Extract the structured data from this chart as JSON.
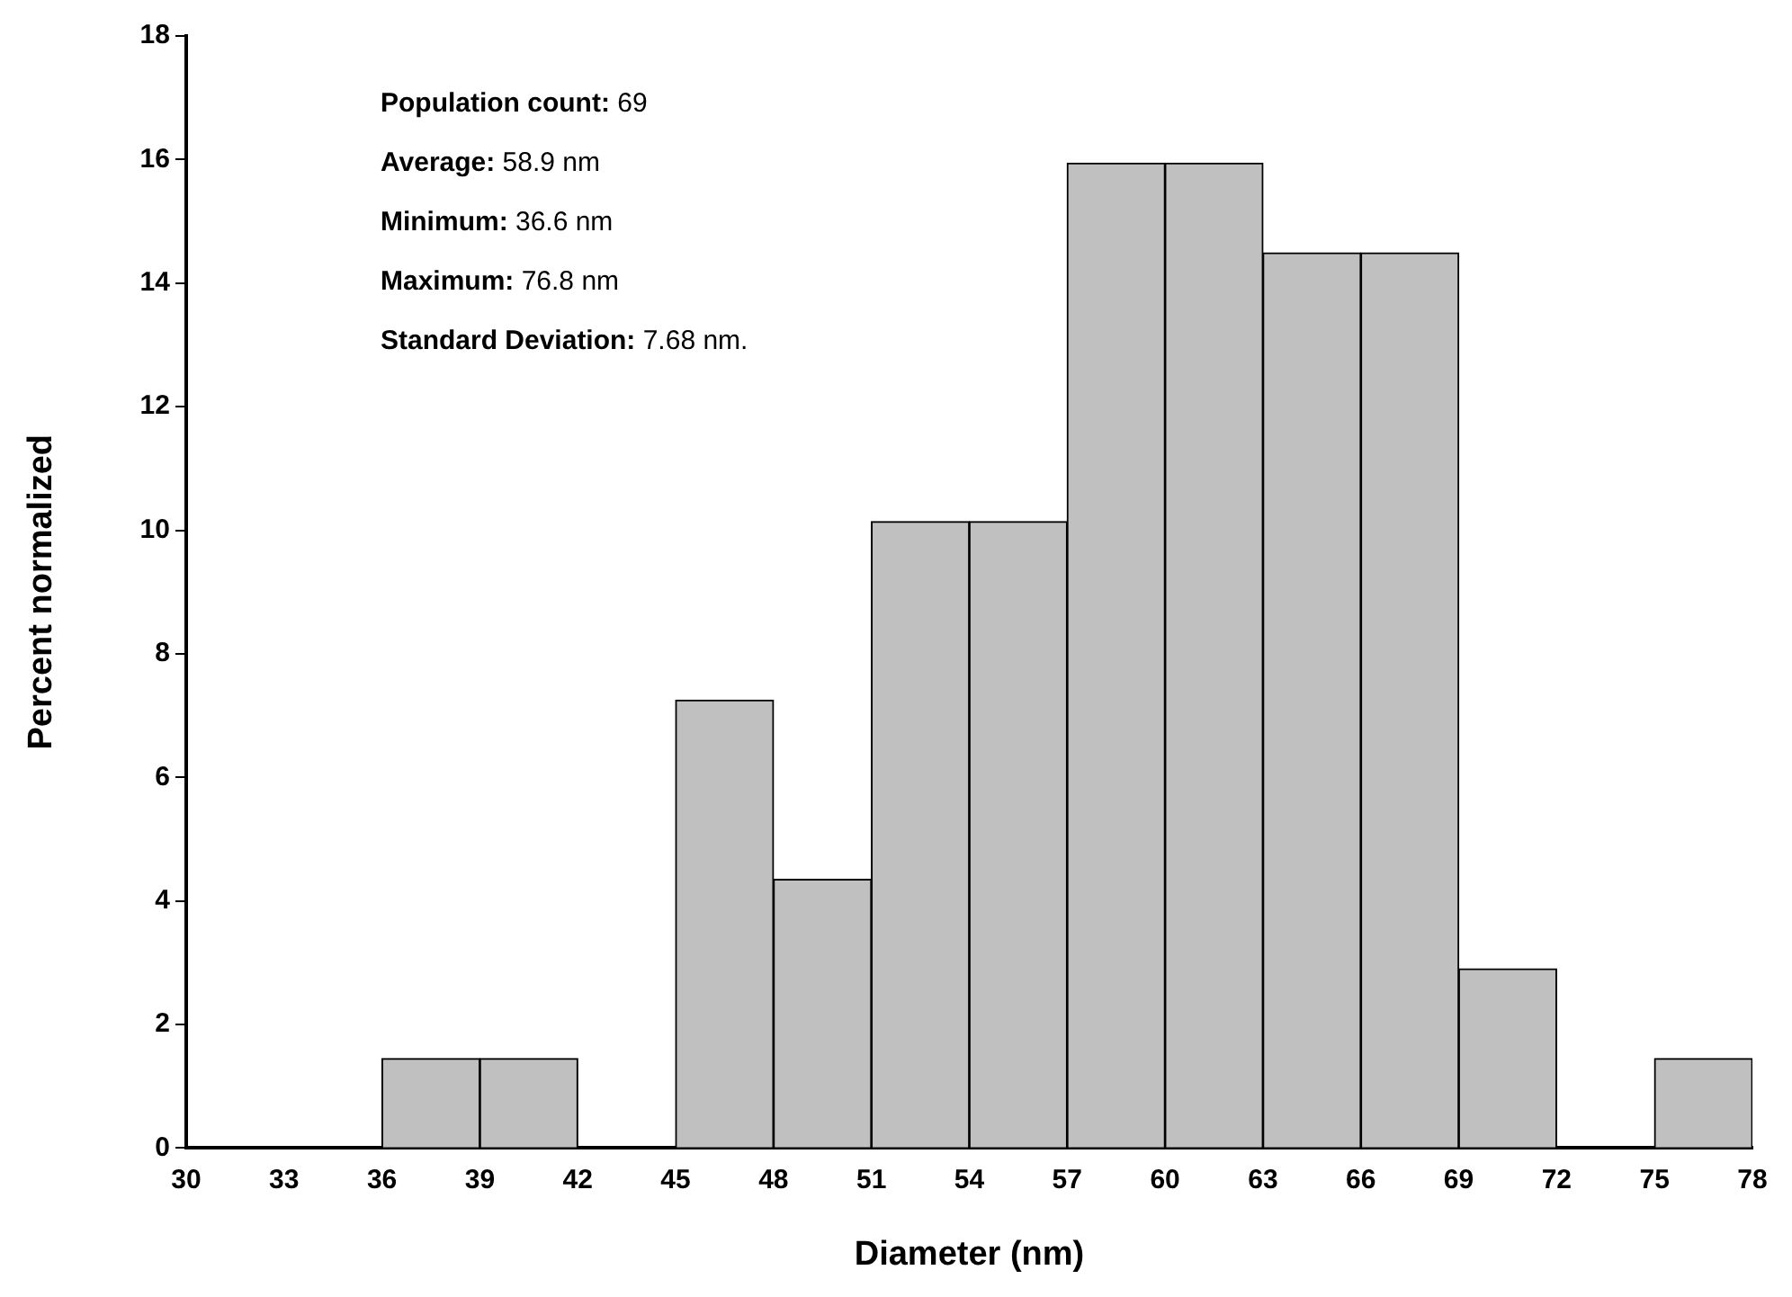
{
  "chart_data": {
    "type": "histogram",
    "xlabel": "Diameter (nm)",
    "ylabel": "Percent normalized",
    "bins": [
      30,
      33,
      36,
      39,
      42,
      45,
      48,
      51,
      54,
      57,
      60,
      63,
      66,
      69,
      72,
      75,
      78
    ],
    "values": [
      0,
      0,
      1.45,
      1.45,
      0,
      7.25,
      4.35,
      10.14,
      10.14,
      15.94,
      15.94,
      14.49,
      14.49,
      2.9,
      0,
      1.45
    ],
    "color": "#c0c0c0",
    "xlim": [
      30,
      78
    ],
    "xticks": [
      30,
      33,
      36,
      39,
      42,
      45,
      48,
      51,
      54,
      57,
      60,
      63,
      66,
      69,
      72,
      75,
      78
    ],
    "ylim": [
      0,
      18
    ],
    "yticks": [
      0,
      2,
      4,
      6,
      8,
      10,
      12,
      14,
      16,
      18
    ],
    "annotations": [
      "Population count: 69",
      "Average: 58.9 nm",
      "Minimum: 36.6 nm",
      "Maximum: 76.8 nm",
      "Standard Deviation: 7.68 nm."
    ]
  }
}
